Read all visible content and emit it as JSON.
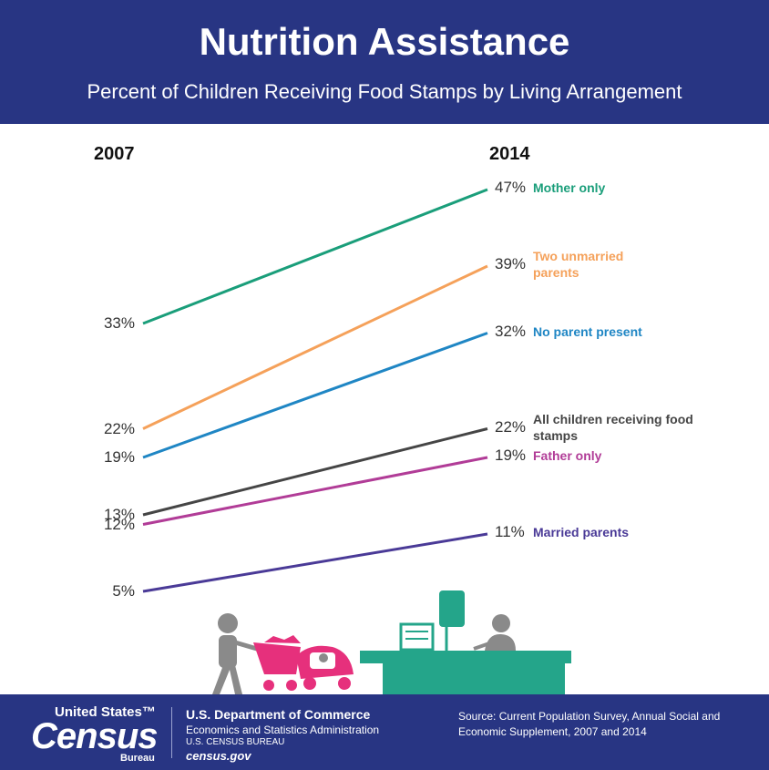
{
  "header": {
    "title": "Nutrition Assistance",
    "subtitle": "Percent of Children Receiving Food Stamps by Living Arrangement"
  },
  "chart_data": {
    "type": "slope",
    "categories": [
      "2007",
      "2014"
    ],
    "ylim": [
      0,
      50
    ],
    "series": [
      {
        "name": "Mother only",
        "color": "#1a9e7a",
        "values": [
          33,
          47
        ],
        "value_labels": [
          "33%",
          "47%"
        ]
      },
      {
        "name": "Two unmarried parents",
        "color": "#f5a15a",
        "values": [
          22,
          39
        ],
        "value_labels": [
          "22%",
          "39%"
        ]
      },
      {
        "name": "No parent present",
        "color": "#1f86c4",
        "values": [
          19,
          32
        ],
        "value_labels": [
          "19%",
          "32%"
        ]
      },
      {
        "name": "All children receiving food stamps",
        "color": "#454545",
        "values": [
          13,
          22
        ],
        "value_labels": [
          "13%",
          "22%"
        ]
      },
      {
        "name": "Father only",
        "color": "#b13c97",
        "values": [
          12,
          19
        ],
        "value_labels": [
          "12%",
          "19%"
        ]
      },
      {
        "name": "Married parents",
        "color": "#4a3a97",
        "values": [
          5,
          11
        ],
        "value_labels": [
          "5%",
          "11%"
        ]
      }
    ]
  },
  "footer": {
    "logo_top": "United States™",
    "logo_main": "Census",
    "logo_bottom": "Bureau",
    "dept": "U.S. Department of Commerce",
    "admin": "Economics and Statistics Administration",
    "bureau": "U.S. CENSUS BUREAU",
    "site": "census.gov",
    "source": "Source: Current Population Survey, Annual Social and Economic Supplement, 2007 and 2014"
  }
}
